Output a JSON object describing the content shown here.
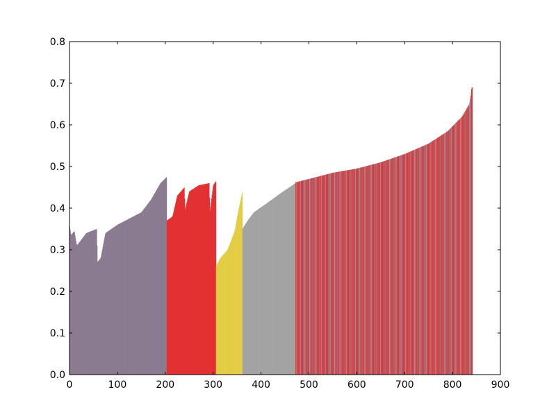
{
  "chart_data": {
    "type": "bar",
    "title": "",
    "xlabel": "",
    "ylabel": "",
    "xlim": [
      0,
      900
    ],
    "ylim": [
      0,
      0.8
    ],
    "xticks": [
      0,
      100,
      200,
      300,
      400,
      500,
      600,
      700,
      800,
      900
    ],
    "yticks": [
      0.0,
      0.1,
      0.2,
      0.3,
      0.4,
      0.5,
      0.6,
      0.7,
      0.8
    ],
    "xtick_labels": [
      "0",
      "100",
      "200",
      "300",
      "400",
      "500",
      "600",
      "700",
      "800",
      "900"
    ],
    "ytick_labels": [
      "0.0",
      "0.1",
      "0.2",
      "0.3",
      "0.4",
      "0.5",
      "0.6",
      "0.7",
      "0.8"
    ],
    "grid": false,
    "legend": "none",
    "bar_count": 842,
    "colors": {
      "purple": "#8b7b90",
      "red": "#e33132",
      "yellow": "#e3cd45",
      "gray": "#a3a3a3"
    },
    "groups": [
      {
        "color": "purple",
        "x_start": 0,
        "x_end": 203,
        "profile": [
          [
            0,
            0.36
          ],
          [
            3,
            0.335
          ],
          [
            10,
            0.345
          ],
          [
            15,
            0.31
          ],
          [
            22,
            0.32
          ],
          [
            35,
            0.34
          ],
          [
            57,
            0.35
          ],
          [
            58,
            0.27
          ],
          [
            65,
            0.28
          ],
          [
            75,
            0.34
          ],
          [
            100,
            0.36
          ],
          [
            150,
            0.39
          ],
          [
            170,
            0.42
          ],
          [
            190,
            0.46
          ],
          [
            203,
            0.475
          ]
        ]
      },
      {
        "color": "red",
        "x_start": 203,
        "x_end": 306,
        "profile": [
          [
            203,
            0.37
          ],
          [
            215,
            0.38
          ],
          [
            225,
            0.43
          ],
          [
            240,
            0.45
          ],
          [
            241,
            0.395
          ],
          [
            250,
            0.44
          ],
          [
            270,
            0.455
          ],
          [
            292,
            0.46
          ],
          [
            293,
            0.39
          ],
          [
            300,
            0.455
          ],
          [
            306,
            0.465
          ]
        ]
      },
      {
        "color": "yellow",
        "x_start": 306,
        "x_end": 361,
        "profile": [
          [
            306,
            0.26
          ],
          [
            315,
            0.28
          ],
          [
            330,
            0.3
          ],
          [
            345,
            0.345
          ],
          [
            352,
            0.39
          ],
          [
            361,
            0.44
          ]
        ]
      },
      {
        "color": "gray",
        "x_start": 361,
        "x_end": 472,
        "profile": [
          [
            361,
            0.35
          ],
          [
            372,
            0.37
          ],
          [
            385,
            0.39
          ],
          [
            410,
            0.41
          ],
          [
            440,
            0.435
          ],
          [
            472,
            0.46
          ]
        ]
      },
      {
        "color": "mixed",
        "x_start": 472,
        "x_end": 842,
        "profile": [
          [
            472,
            0.462
          ],
          [
            500,
            0.47
          ],
          [
            550,
            0.485
          ],
          [
            600,
            0.495
          ],
          [
            650,
            0.51
          ],
          [
            700,
            0.53
          ],
          [
            750,
            0.555
          ],
          [
            790,
            0.585
          ],
          [
            820,
            0.62
          ],
          [
            835,
            0.65
          ],
          [
            840,
            0.69
          ]
        ]
      }
    ]
  }
}
